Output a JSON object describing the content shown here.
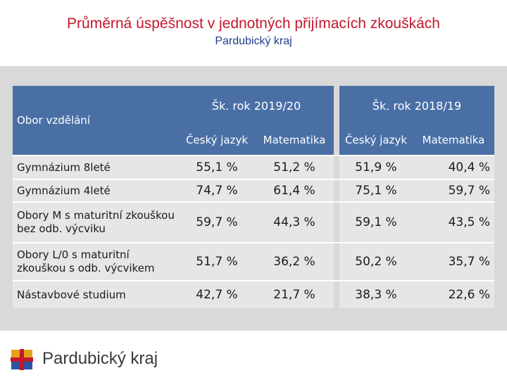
{
  "header": {
    "title": "Průměrná úspěšnost v jednotných přijímacích zkouškách",
    "subtitle": "Pardubický kraj"
  },
  "table": {
    "obor_label": "Obor vzdělání",
    "years": [
      "Šk. rok 2019/20",
      "Šk. rok 2018/19"
    ],
    "subjects": [
      "Český jazyk",
      "Matematika",
      "Český jazyk",
      "Matematika"
    ],
    "rows": [
      {
        "name": "Gymnázium 8leté",
        "values": [
          "55,1 %",
          "51,2 %",
          "51,9 %",
          "40,4 %"
        ]
      },
      {
        "name": "Gymnázium 4leté",
        "values": [
          "74,7 %",
          "61,4 %",
          "75,1 %",
          "59,7 %"
        ]
      },
      {
        "name": "Obory M s maturitní zkouškou bez odb. výcviku",
        "values": [
          "59,7 %",
          "44,3 %",
          "59,1 %",
          "43,5 %"
        ]
      },
      {
        "name": "Obory L/0 s maturitní zkouškou s odb. výcvikem",
        "values": [
          "51,7 %",
          "36,2 %",
          "50,2 %",
          "35,7 %"
        ]
      },
      {
        "name": "Nástavbové studium",
        "values": [
          "42,7 %",
          "21,7 %",
          "38,3 %",
          "22,6 %"
        ]
      }
    ]
  },
  "footer": {
    "logo_text": "Pardubický kraj"
  },
  "colors": {
    "title": "#c4172c",
    "subtitle": "#1f3d8a",
    "header_bg": "#4a6fa5",
    "panel_bg": "#d9d9d9",
    "row_bg": "#e6e6e6"
  }
}
